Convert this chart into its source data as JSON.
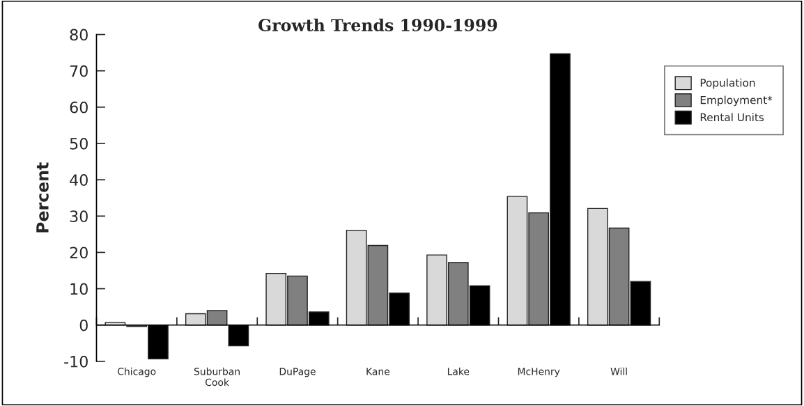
{
  "chart_data": {
    "type": "bar",
    "title": "Growth Trends 1990-1999",
    "ylabel": "Percent",
    "categories": [
      "Chicago",
      "Suburban\nCook",
      "DuPage",
      "Kane",
      "Lake",
      "McHenry",
      "Will"
    ],
    "series": [
      {
        "name": "Population",
        "color": "#d9d9d9",
        "values": [
          0.7,
          3.1,
          14.2,
          26.1,
          19.3,
          35.4,
          32.1
        ]
      },
      {
        "name": "Employment*",
        "color": "#808080",
        "values": [
          -0.4,
          4.0,
          13.5,
          21.9,
          17.2,
          30.9,
          26.7
        ]
      },
      {
        "name": "Rental Units",
        "color": "#000000",
        "values": [
          -9.3,
          -5.7,
          3.6,
          8.8,
          10.8,
          74.7,
          12.0
        ]
      }
    ],
    "ylim": [
      -10,
      80
    ],
    "yticks": [
      -10,
      0,
      10,
      20,
      30,
      40,
      50,
      60,
      70,
      80
    ],
    "legend": "top right"
  }
}
